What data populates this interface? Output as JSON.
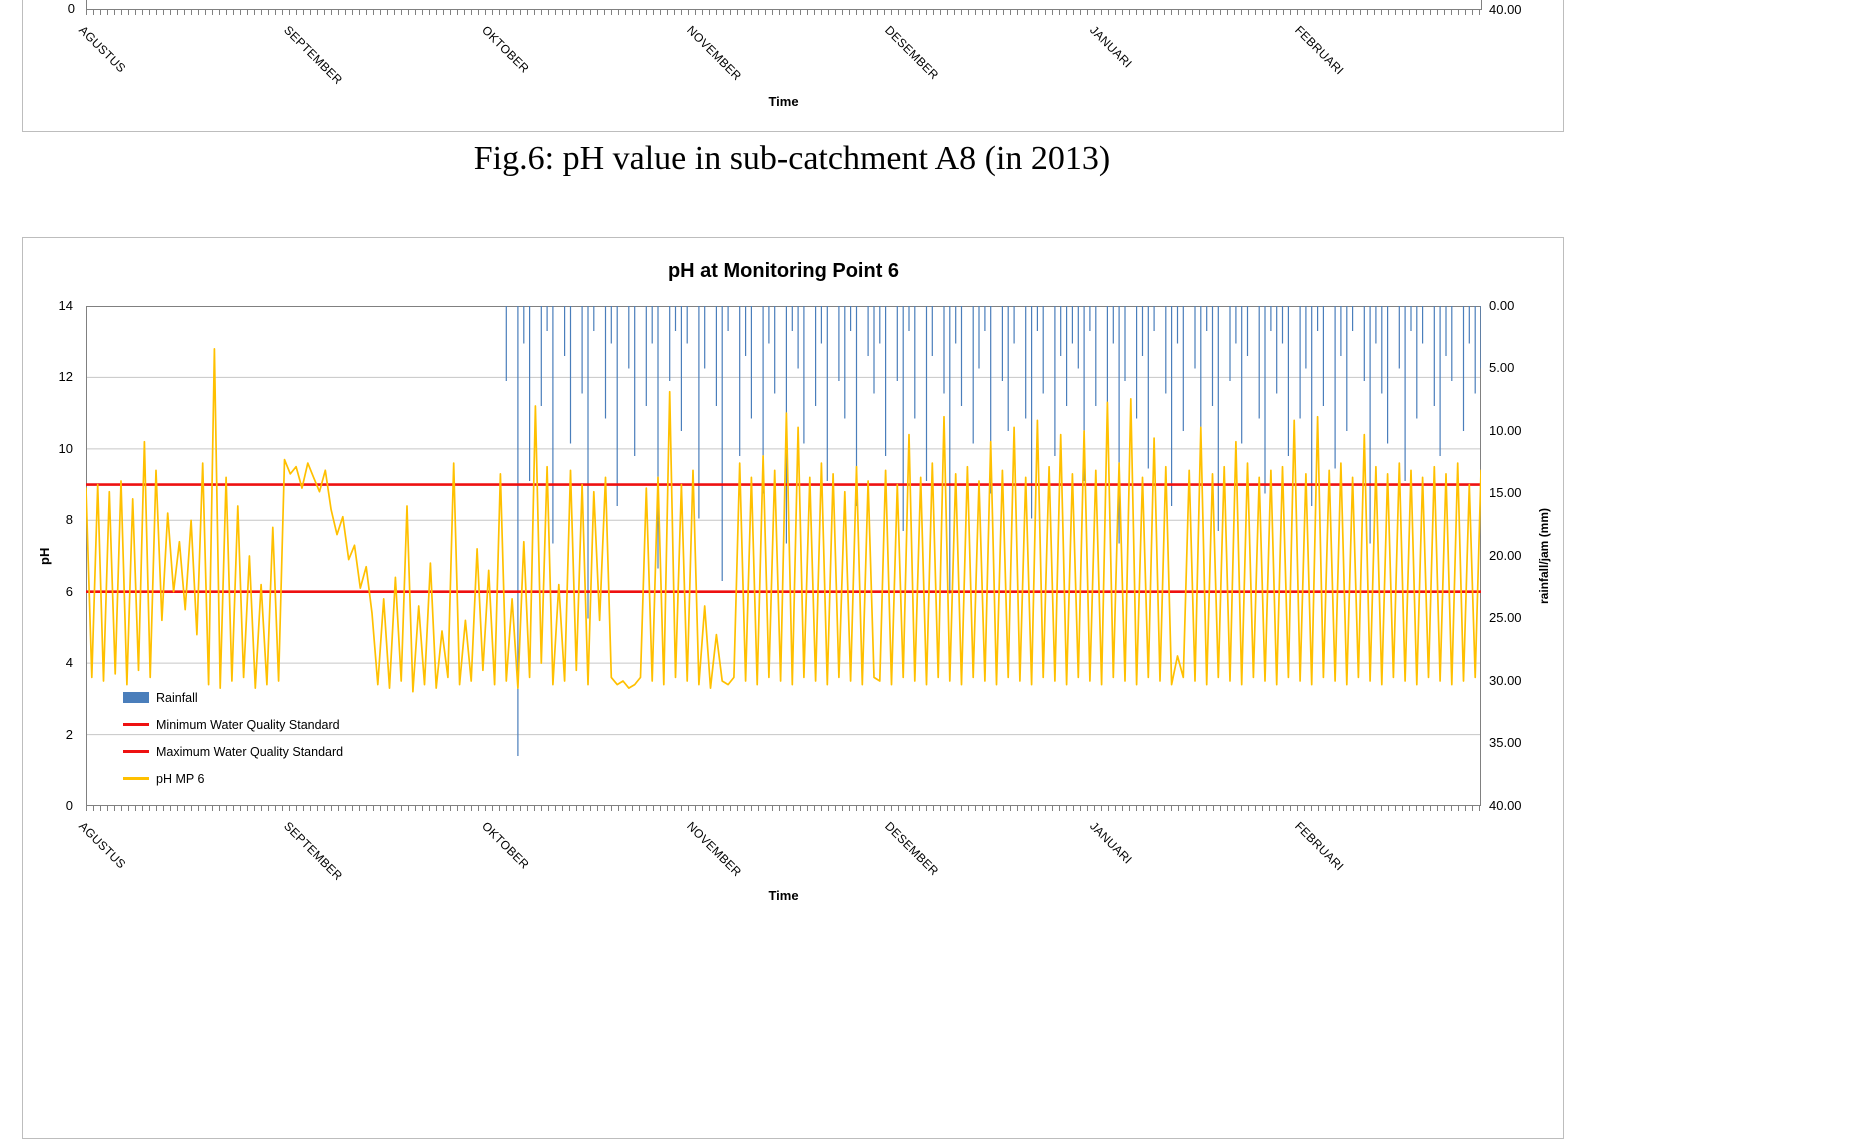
{
  "caption": "Fig.6: pH value in sub-catchment A8 (in 2013)",
  "months": [
    "AGUSTUS",
    "SEPTEMBER",
    "OKTOBER",
    "NOVEMBER",
    "DESEMBER",
    "JANUARI",
    "FEBRUARI"
  ],
  "top_chart_fragment": {
    "left_axis_tick": "0",
    "right_axis_tick": "40.00",
    "xlabel": "Time"
  },
  "chart_data": {
    "type": "line",
    "title": "pH at Monitoring Point 6",
    "xlabel": "Time",
    "ylabel_left": "pH",
    "ylabel_right": "rainfall/jam (mm)",
    "y_left_range": [
      0,
      14
    ],
    "y_right_range": [
      0,
      40
    ],
    "y_right_inverted": true,
    "y_left_ticks": [
      "14",
      "12",
      "10",
      "8",
      "6",
      "4",
      "2",
      "0"
    ],
    "y_right_ticks": [
      "0.00",
      "5.00",
      "10.00",
      "15.00",
      "20.00",
      "25.00",
      "30.00",
      "35.00",
      "40.00"
    ],
    "gridline_values": [
      2,
      4,
      6,
      8,
      10,
      12
    ],
    "x_months": [
      "AGUSTUS",
      "SEPTEMBER",
      "OKTOBER",
      "NOVEMBER",
      "DESEMBER",
      "JANUARI",
      "FEBRUARI"
    ],
    "month_fractions": [
      0,
      0.147,
      0.289,
      0.436,
      0.578,
      0.725,
      0.872
    ],
    "reference_lines": {
      "minimum_standard_ph": 6,
      "maximum_standard_ph": 9
    },
    "legend_items": [
      {
        "label": "Rainfall",
        "swatch": "rainfall"
      },
      {
        "label": "Minimum Water Quality Standard",
        "swatch": "red-line"
      },
      {
        "label": "Maximum Water Quality Standard",
        "swatch": "red-line"
      },
      {
        "label": "pH MP 6",
        "swatch": "gold-line"
      }
    ],
    "colors": {
      "rainfall": "#4a7ebb",
      "standard_line": "#ee1111",
      "ph_line": "#ffc000",
      "gridline": "#c6c6c6",
      "axis": "#808080"
    },
    "series": [
      {
        "name": "pH MP 6",
        "axis": "left",
        "values": [
          8.9,
          3.6,
          9.0,
          3.5,
          8.8,
          3.7,
          9.1,
          3.4,
          8.6,
          3.8,
          10.2,
          3.6,
          9.4,
          5.2,
          8.2,
          6.0,
          7.4,
          5.5,
          8.0,
          4.8,
          9.6,
          3.4,
          12.8,
          3.3,
          9.2,
          3.5,
          8.4,
          3.6,
          7.0,
          3.3,
          6.2,
          3.4,
          7.8,
          3.5,
          9.7,
          9.3,
          9.5,
          8.9,
          9.6,
          9.2,
          8.8,
          9.4,
          8.3,
          7.6,
          8.1,
          6.9,
          7.3,
          6.1,
          6.7,
          5.4,
          3.4,
          5.8,
          3.3,
          6.4,
          3.5,
          8.4,
          3.2,
          5.6,
          3.4,
          6.8,
          3.3,
          4.9,
          3.6,
          9.6,
          3.4,
          5.2,
          3.5,
          7.2,
          3.8,
          6.6,
          3.4,
          9.3,
          3.5,
          5.8,
          3.3,
          7.4,
          3.6,
          11.2,
          4.0,
          9.5,
          3.4,
          6.2,
          3.5,
          9.4,
          3.8,
          9.0,
          3.4,
          8.8,
          5.2,
          9.2,
          3.6,
          3.4,
          3.5,
          3.3,
          3.4,
          3.6,
          8.9,
          3.5,
          9.2,
          3.4,
          11.6,
          3.6,
          9.0,
          3.5,
          9.4,
          3.4,
          5.6,
          3.3,
          4.8,
          3.5,
          3.4,
          3.6,
          9.6,
          3.5,
          9.2,
          3.4,
          9.8,
          3.6,
          9.4,
          3.5,
          11.0,
          3.4,
          10.6,
          3.6,
          9.2,
          3.5,
          9.6,
          3.4,
          9.3,
          3.6,
          8.8,
          3.5,
          9.5,
          3.4,
          9.1,
          3.6,
          3.5,
          9.4,
          3.4,
          9.0,
          3.6,
          10.4,
          3.5,
          9.2,
          3.4,
          9.6,
          3.6,
          10.9,
          3.5,
          9.3,
          3.4,
          9.5,
          3.6,
          9.1,
          3.5,
          10.2,
          3.4,
          9.4,
          3.6,
          10.6,
          3.5,
          9.2,
          3.4,
          10.8,
          3.6,
          9.5,
          3.5,
          10.4,
          3.4,
          9.3,
          3.6,
          10.5,
          3.5,
          9.4,
          3.4,
          11.3,
          3.6,
          9.6,
          3.5,
          11.4,
          3.4,
          9.2,
          3.6,
          10.3,
          3.5,
          9.5,
          3.4,
          4.2,
          3.6,
          9.4,
          3.5,
          10.6,
          3.4,
          9.3,
          3.6,
          9.5,
          3.5,
          10.2,
          3.4,
          9.6,
          3.6,
          9.2,
          3.5,
          9.4,
          3.4,
          9.5,
          3.6,
          10.8,
          3.5,
          9.3,
          3.4,
          10.9,
          3.6,
          9.4,
          3.5,
          9.6,
          3.4,
          9.2,
          3.6,
          10.4,
          3.5,
          9.5,
          3.4,
          9.3,
          3.6,
          9.6,
          3.5,
          9.4,
          3.4,
          9.2,
          3.6,
          9.5,
          3.5,
          9.3,
          3.4,
          9.6,
          3.5,
          9.0,
          3.6,
          9.4
        ]
      },
      {
        "name": "Rainfall",
        "axis": "right",
        "values": [
          0,
          0,
          0,
          0,
          0,
          0,
          0,
          0,
          0,
          0,
          0,
          0,
          0,
          0,
          0,
          0,
          0,
          0,
          0,
          0,
          0,
          0,
          0,
          0,
          0,
          0,
          0,
          0,
          0,
          0,
          0,
          0,
          0,
          0,
          0,
          0,
          0,
          0,
          0,
          0,
          0,
          0,
          0,
          0,
          0,
          0,
          0,
          0,
          0,
          0,
          0,
          0,
          0,
          0,
          0,
          0,
          0,
          0,
          0,
          0,
          0,
          0,
          0,
          0,
          0,
          0,
          0,
          0,
          0,
          0,
          0,
          0,
          6,
          0,
          36,
          3,
          14,
          0,
          8,
          2,
          19,
          0,
          4,
          11,
          0,
          7,
          25,
          2,
          0,
          9,
          3,
          16,
          0,
          5,
          12,
          0,
          8,
          3,
          21,
          0,
          6,
          2,
          10,
          3,
          0,
          17,
          5,
          0,
          8,
          22,
          2,
          0,
          12,
          4,
          9,
          0,
          15,
          3,
          7,
          0,
          19,
          2,
          5,
          11,
          0,
          8,
          3,
          14,
          0,
          6,
          9,
          2,
          16,
          0,
          4,
          7,
          3,
          12,
          0,
          6,
          18,
          2,
          9,
          0,
          14,
          4,
          0,
          7,
          23,
          3,
          8,
          0,
          11,
          5,
          2,
          15,
          0,
          6,
          10,
          3,
          0,
          9,
          17,
          2,
          7,
          0,
          12,
          4,
          8,
          3,
          5,
          14,
          2,
          8,
          0,
          11,
          3,
          19,
          6,
          0,
          9,
          4,
          13,
          2,
          0,
          7,
          16,
          3,
          10,
          0,
          5,
          12,
          2,
          8,
          18,
          0,
          6,
          3,
          11,
          4,
          0,
          9,
          15,
          2,
          7,
          3,
          12,
          0,
          9,
          5,
          16,
          2,
          8,
          0,
          13,
          4,
          10,
          2,
          0,
          6,
          19,
          3,
          7,
          11,
          0,
          5,
          14,
          2,
          9,
          3,
          0,
          8,
          12,
          4,
          6,
          0,
          10,
          3,
          7,
          5
        ]
      }
    ]
  }
}
